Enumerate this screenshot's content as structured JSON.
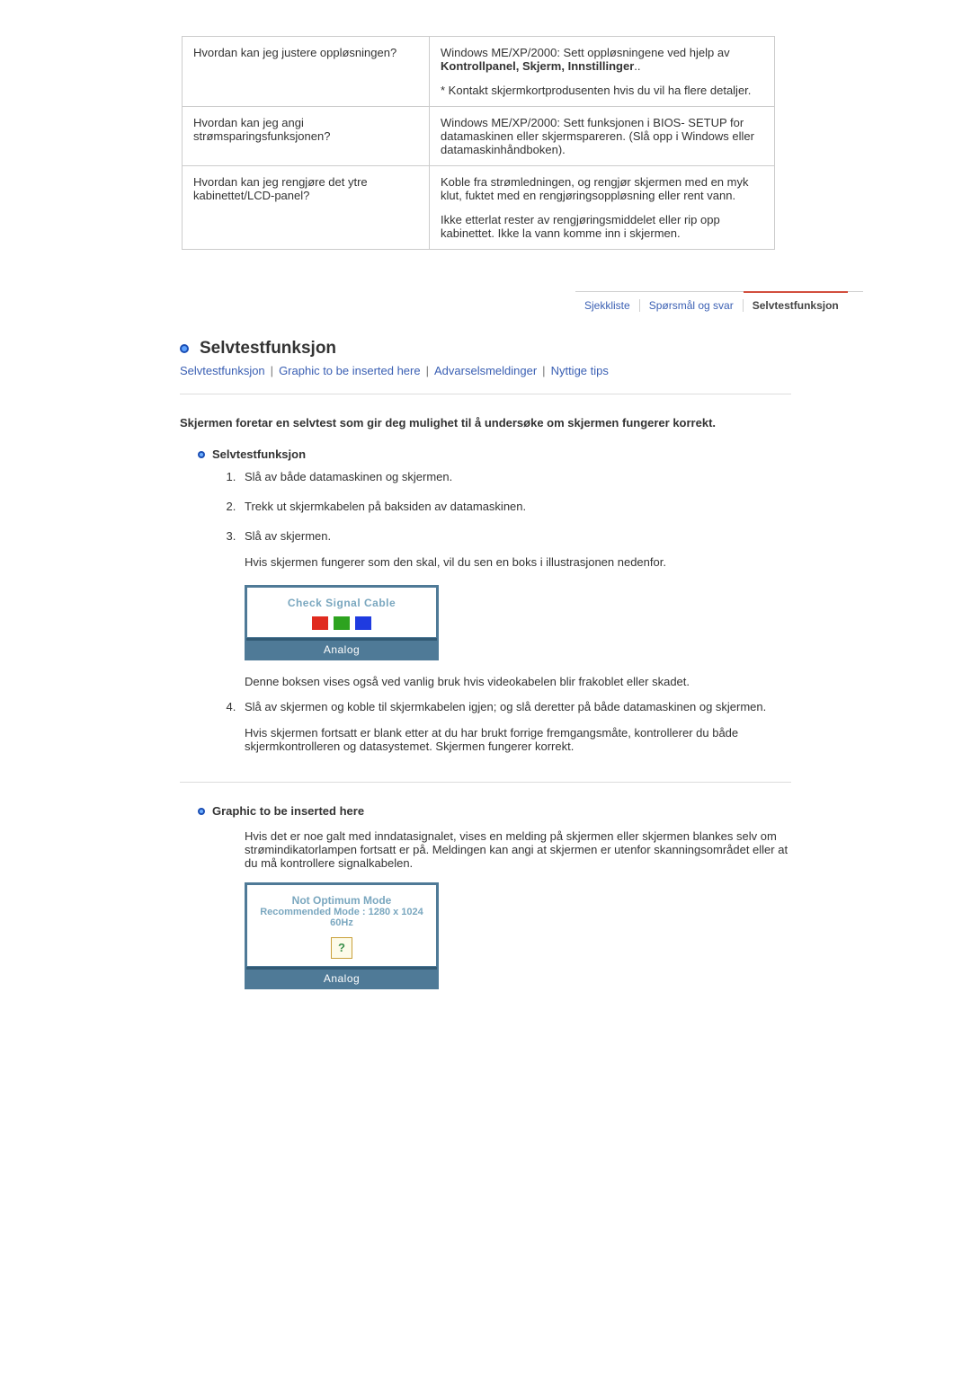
{
  "faq_table": {
    "rows": [
      {
        "q": "Hvordan kan jeg justere oppløsningen?",
        "a_parts": [
          {
            "plain": "Windows ME/XP/2000: Sett oppløsningene ved hjelp av ",
            "bold": "Kontrollpanel, Skjerm, Innstillinger",
            "tail": ".."
          },
          {
            "plain": "* Kontakt skjermkortprodusenten hvis du vil ha flere detaljer."
          }
        ]
      },
      {
        "q": "Hvordan kan jeg angi strømsparingsfunksjonen?",
        "a_parts": [
          {
            "plain": "Windows ME/XP/2000: Sett funksjonen i BIOS- SETUP for datamaskinen eller skjermspareren. (Slå opp i Windows eller datamaskinhåndboken)."
          }
        ]
      },
      {
        "q": "Hvordan kan jeg rengjøre det ytre kabinettet/LCD-panel?",
        "a_parts": [
          {
            "plain": "Koble fra strømledningen, og rengjør skjermen med en myk klut, fuktet med en rengjøringsoppløsning eller rent vann."
          },
          {
            "plain": "Ikke etterlat rester av rengjøringsmiddelet eller rip opp kabinettet. Ikke la vann komme inn i skjermen."
          }
        ]
      }
    ]
  },
  "tabs": {
    "items": [
      {
        "label": "Sjekkliste",
        "active": false
      },
      {
        "label": "Spørsmål og svar",
        "active": false
      },
      {
        "label": "Selvtestfunksjon",
        "active": true
      }
    ]
  },
  "section": {
    "title": "Selvtestfunksjon",
    "sublinks": [
      "Selvtestfunksjon",
      "Graphic to be inserted here",
      "Advarselsmeldinger",
      "Nyttige tips"
    ],
    "intro": "Skjermen foretar en selvtest som gir deg mulighet til å undersøke om skjermen fungerer korrekt."
  },
  "selftest": {
    "heading": "Selvtestfunksjon",
    "steps": [
      "Slå av både datamaskinen og skjermen.",
      "Trekk ut skjermkabelen på baksiden av datamaskinen.",
      "Slå av skjermen."
    ],
    "after3": "Hvis skjermen fungerer som den skal, vil du sen en boks i illustrasjonen nedenfor.",
    "osd1_text": "Check Signal Cable",
    "osd_footer": "Analog",
    "caption_box": "Denne boksen vises også ved vanlig bruk hvis videokabelen blir frakoblet eller skadet.",
    "step4": "Slå av skjermen og koble til skjermkabelen igjen; og slå deretter på både datamaskinen og skjermen.",
    "after4": "Hvis skjermen fortsatt er blank etter at du har brukt forrige fremgangsmåte, kontrollerer du både skjermkontrolleren og datasystemet. Skjermen fungerer korrekt."
  },
  "graphic": {
    "heading": "Graphic to be inserted here",
    "para": "Hvis det er noe galt med inndatasignalet, vises en melding på skjermen eller skjermen blankes selv om strømindikatorlampen fortsatt er på. Meldingen kan angi at skjermen er utenfor skanningsområdet eller at du må kontrollere signalkabelen.",
    "osd2_line1": "Not Optimum Mode",
    "osd2_line2": "Recommended Mode : 1280 x 1024  60Hz",
    "osd_footer": "Analog",
    "qmark": "?"
  },
  "style": {
    "link_color": "#3a5fb3",
    "border_color": "#cccccc",
    "osd_frame": "#4f7a97",
    "osd_text": "#7aa7bf",
    "red": "#e02b1f",
    "green": "#2da31f",
    "blue": "#1f3be0",
    "active_tab_bar": "#d24e3d"
  }
}
